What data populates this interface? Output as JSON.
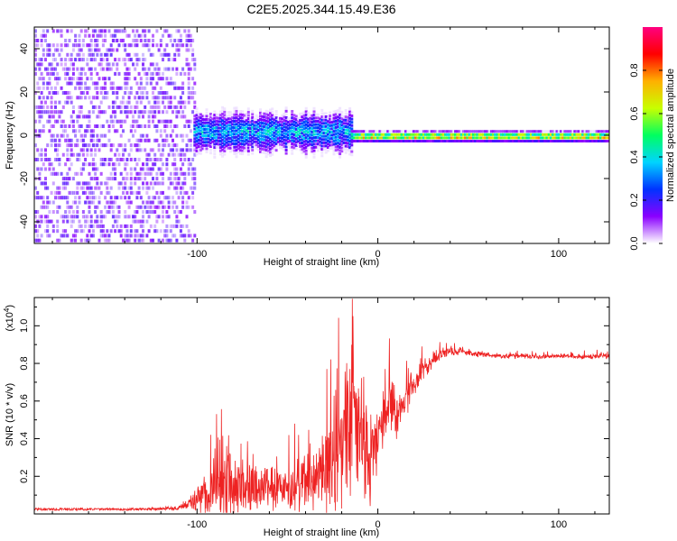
{
  "chart_data": [
    {
      "type": "heatmap",
      "title": "C2E5.2025.344.15.49.E36",
      "xlabel": "Height of straight line (km)",
      "ylabel": "Frequency (Hz)",
      "xlim": [
        -190,
        128
      ],
      "ylim": [
        -50,
        50
      ],
      "xticks": [
        -100,
        0,
        100
      ],
      "yticks": [
        -40,
        -20,
        0,
        20,
        40
      ],
      "xtick_labels": [
        "-100",
        "0",
        "100"
      ],
      "ytick_labels": [
        "-40",
        "-20",
        "0",
        "20",
        "40"
      ],
      "colorbar": {
        "label": "Normalized spectral amplitude",
        "range": [
          0,
          1
        ],
        "ticks": [
          0.0,
          0.2,
          0.4,
          0.6,
          0.8
        ],
        "tick_labels": [
          "0.0",
          "0.2",
          "0.4",
          "0.6",
          "0.8"
        ],
        "colormap": [
          "#ffffff",
          "#8a00ff",
          "#0033ff",
          "#00d4ff",
          "#00ff60",
          "#c8ff00",
          "#ffb000",
          "#ff0000",
          "#ff0080"
        ]
      },
      "regions": [
        {
          "name": "noise",
          "x_range": [
            -190,
            -102
          ],
          "freq_range": [
            -50,
            50
          ],
          "amplitude": [
            0.0,
            0.15
          ]
        },
        {
          "name": "signal_onset",
          "x_range": [
            -102,
            -15
          ],
          "center_freq": 2,
          "freq_spread": 7,
          "amplitude": [
            0.2,
            0.45
          ]
        },
        {
          "name": "narrow_band",
          "x_range": [
            -15,
            128
          ],
          "center_freq": 0,
          "freq_spread": 2,
          "amplitude": [
            0.5,
            0.9
          ]
        }
      ]
    },
    {
      "type": "line",
      "xlabel": "Height of straight line (km)",
      "ylabel": "SNR (10 * v/v)",
      "y_multiplier": "(x10",
      "y_multiplier_exp": "4",
      "y_multiplier_close": ")",
      "xlim": [
        -190,
        128
      ],
      "ylim": [
        0,
        11500
      ],
      "xticks": [
        -100,
        0,
        100
      ],
      "yticks": [
        2000,
        4000,
        6000,
        8000,
        10000
      ],
      "xtick_labels": [
        "-100",
        "0",
        "100"
      ],
      "ytick_labels": [
        "0.2",
        "0.4",
        "0.6",
        "0.8",
        "1.0"
      ],
      "series": [
        {
          "name": "SNR",
          "color": "#ee2222",
          "x": [
            -190,
            -160,
            -130,
            -110,
            -105,
            -100,
            -95,
            -90,
            -85,
            -80,
            -75,
            -70,
            -65,
            -60,
            -55,
            -50,
            -45,
            -40,
            -35,
            -30,
            -25,
            -20,
            -18,
            -16,
            -14,
            -12,
            -10,
            -8,
            -6,
            -4,
            -2,
            0,
            2,
            5,
            8,
            10,
            15,
            20,
            25,
            30,
            35,
            40,
            45,
            50,
            60,
            70,
            80,
            90,
            100,
            110,
            120,
            128
          ],
          "values": [
            250,
            250,
            250,
            300,
            500,
            800,
            1100,
            1300,
            1450,
            1500,
            1500,
            1480,
            1450,
            1500,
            1550,
            1500,
            1550,
            1650,
            1800,
            2100,
            2600,
            3600,
            4300,
            4800,
            5300,
            4700,
            4200,
            3700,
            3300,
            3100,
            3500,
            4200,
            5200,
            5600,
            5700,
            5200,
            6000,
            6800,
            7600,
            8200,
            8500,
            8600,
            8650,
            8550,
            8450,
            8400,
            8400,
            8350,
            8400,
            8350,
            8400,
            8400
          ],
          "spike_amplitude": [
            0,
            0,
            0,
            100,
            300,
            900,
            1500,
            2200,
            2200,
            2000,
            1800,
            1600,
            1500,
            1500,
            1600,
            1700,
            1800,
            2000,
            2300,
            2800,
            3200,
            3800,
            4200,
            5200,
            4500,
            4000,
            3600,
            3400,
            3200,
            3000,
            2600,
            2200,
            2400,
            2000,
            1800,
            1700,
            1200,
            900,
            700,
            500,
            400,
            300,
            250,
            200,
            150,
            150,
            150,
            150,
            150,
            150,
            150,
            150
          ]
        }
      ]
    }
  ]
}
